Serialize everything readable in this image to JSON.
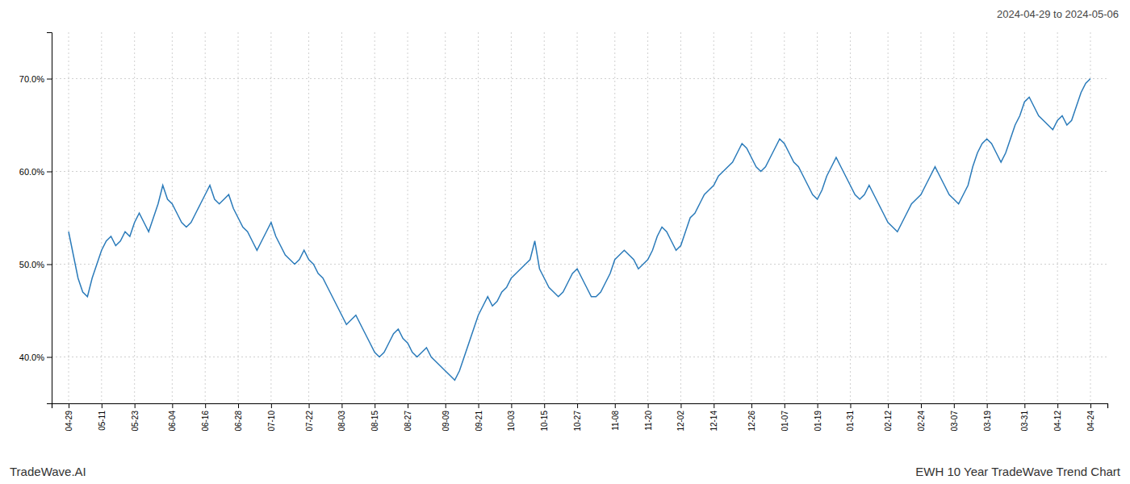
{
  "chart_data": {
    "type": "line",
    "title": "EWH 10 Year TradeWave Trend Chart",
    "subtitle": "2024-04-29 to 2024-05-06",
    "annotations": [
      "TradeWave.AI"
    ],
    "color": "#2b7bba",
    "grid": true,
    "ylim": [
      35,
      75
    ],
    "yticks": [
      {
        "value": 40.0,
        "label": "40.0%"
      },
      {
        "value": 50.0,
        "label": "50.0%"
      },
      {
        "value": 60.0,
        "label": "60.0%"
      },
      {
        "value": 70.0,
        "label": "70.0%"
      }
    ],
    "categories": [
      "04-29",
      null,
      null,
      null,
      null,
      null,
      null,
      "05-11",
      null,
      null,
      null,
      null,
      null,
      null,
      "05-23",
      null,
      null,
      null,
      null,
      null,
      null,
      null,
      "06-04",
      null,
      null,
      null,
      null,
      null,
      null,
      "06-16",
      null,
      null,
      null,
      null,
      null,
      null,
      "06-28",
      null,
      null,
      null,
      null,
      null,
      null,
      "07-10",
      null,
      null,
      null,
      null,
      null,
      null,
      null,
      "07-22",
      null,
      null,
      null,
      null,
      null,
      null,
      "08-03",
      null,
      null,
      null,
      null,
      null,
      null,
      "08-15",
      null,
      null,
      null,
      null,
      null,
      null,
      "08-27",
      null,
      null,
      null,
      null,
      null,
      null,
      null,
      "09-09",
      null,
      null,
      null,
      null,
      null,
      null,
      "09-21",
      null,
      null,
      null,
      null,
      null,
      null,
      "10-03",
      null,
      null,
      null,
      null,
      null,
      null,
      "10-15",
      null,
      null,
      null,
      null,
      null,
      null,
      "10-27",
      null,
      null,
      null,
      null,
      null,
      null,
      null,
      "11-08",
      null,
      null,
      null,
      null,
      null,
      null,
      "11-20",
      null,
      null,
      null,
      null,
      null,
      null,
      "12-02",
      null,
      null,
      null,
      null,
      null,
      null,
      "12-14",
      null,
      null,
      null,
      null,
      null,
      null,
      null,
      "12-26",
      null,
      null,
      null,
      null,
      null,
      null,
      "01-07",
      null,
      null,
      null,
      null,
      null,
      null,
      "01-19",
      null,
      null,
      null,
      null,
      null,
      null,
      "01-31",
      null,
      null,
      null,
      null,
      null,
      null,
      null,
      "02-12",
      null,
      null,
      null,
      null,
      null,
      null,
      "02-24",
      null,
      null,
      null,
      null,
      null,
      null,
      "03-07",
      null,
      null,
      null,
      null,
      null,
      null,
      "03-19",
      null,
      null,
      null,
      null,
      null,
      null,
      null,
      "03-31",
      null,
      null,
      null,
      null,
      null,
      null,
      "04-12",
      null,
      null,
      null,
      null,
      null,
      null,
      "04-24"
    ],
    "values": [
      53.5,
      51.0,
      48.5,
      47.0,
      46.5,
      48.5,
      50.0,
      51.5,
      52.5,
      53.0,
      52.0,
      52.5,
      53.5,
      53.0,
      54.5,
      55.5,
      54.5,
      53.5,
      55.0,
      56.5,
      58.5,
      57.0,
      56.5,
      55.5,
      54.5,
      54.0,
      54.5,
      55.5,
      56.5,
      57.5,
      58.5,
      57.0,
      56.5,
      57.0,
      57.5,
      56.0,
      55.0,
      54.0,
      53.5,
      52.5,
      51.5,
      52.5,
      53.5,
      54.5,
      53.0,
      52.0,
      51.0,
      50.5,
      50.0,
      50.5,
      51.5,
      50.5,
      50.0,
      49.0,
      48.5,
      47.5,
      46.5,
      45.5,
      44.5,
      43.5,
      44.0,
      44.5,
      43.5,
      42.5,
      41.5,
      40.5,
      40.0,
      40.5,
      41.5,
      42.5,
      43.0,
      42.0,
      41.5,
      40.5,
      40.0,
      40.5,
      41.0,
      40.0,
      39.5,
      39.0,
      38.5,
      38.0,
      37.5,
      38.5,
      40.0,
      41.5,
      43.0,
      44.5,
      45.5,
      46.5,
      45.5,
      46.0,
      47.0,
      47.5,
      48.5,
      49.0,
      49.5,
      50.0,
      50.5,
      52.5,
      49.5,
      48.5,
      47.5,
      47.0,
      46.5,
      47.0,
      48.0,
      49.0,
      49.5,
      48.5,
      47.5,
      46.5,
      46.5,
      47.0,
      48.0,
      49.0,
      50.5,
      51.0,
      51.5,
      51.0,
      50.5,
      49.5,
      50.0,
      50.5,
      51.5,
      53.0,
      54.0,
      53.5,
      52.5,
      51.5,
      52.0,
      53.5,
      55.0,
      55.5,
      56.5,
      57.5,
      58.0,
      58.5,
      59.5,
      60.0,
      60.5,
      61.0,
      62.0,
      63.0,
      62.5,
      61.5,
      60.5,
      60.0,
      60.5,
      61.5,
      62.5,
      63.5,
      63.0,
      62.0,
      61.0,
      60.5,
      59.5,
      58.5,
      57.5,
      57.0,
      58.0,
      59.5,
      60.5,
      61.5,
      60.5,
      59.5,
      58.5,
      57.5,
      57.0,
      57.5,
      58.5,
      57.5,
      56.5,
      55.5,
      54.5,
      54.0,
      53.5,
      54.5,
      55.5,
      56.5,
      57.0,
      57.5,
      58.5,
      59.5,
      60.5,
      59.5,
      58.5,
      57.5,
      57.0,
      56.5,
      57.5,
      58.5,
      60.5,
      62.0,
      63.0,
      63.5,
      63.0,
      62.0,
      61.0,
      62.0,
      63.5,
      65.0,
      66.0,
      67.5,
      68.0,
      67.0,
      66.0,
      65.5,
      65.0,
      64.5,
      65.5,
      66.0,
      65.0,
      65.5,
      67.0,
      68.5,
      69.5,
      70.0
    ]
  }
}
